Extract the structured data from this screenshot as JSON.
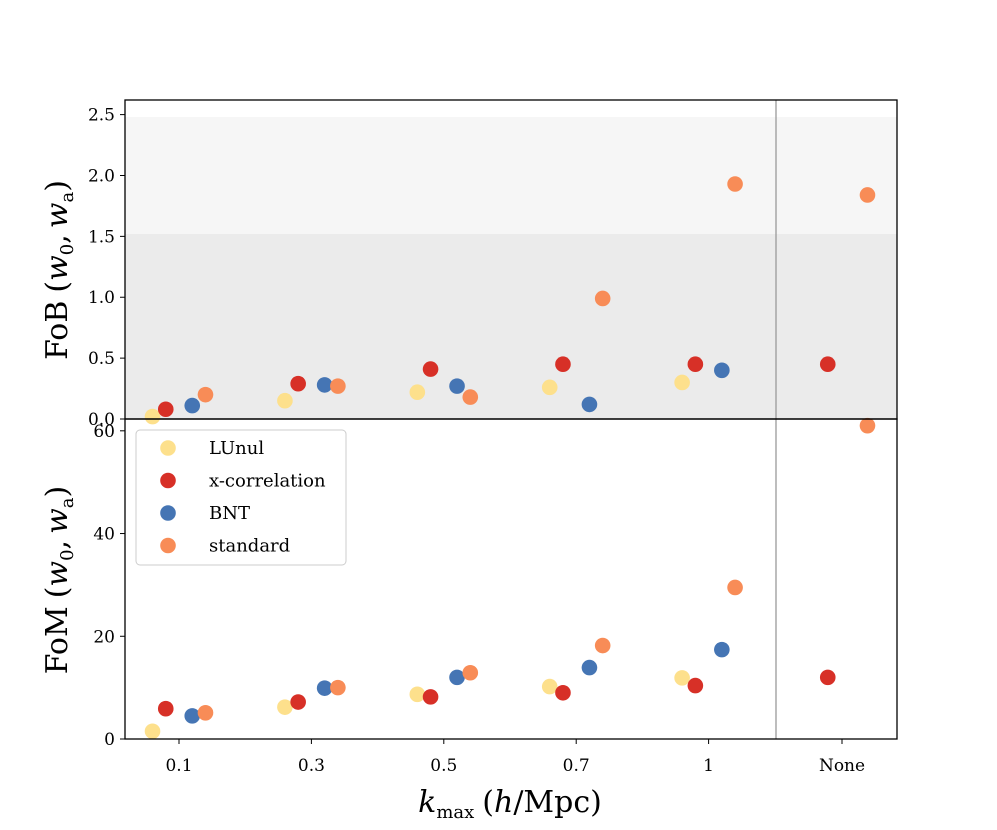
{
  "chart_data": [
    {
      "type": "scatter",
      "panel": "top",
      "ylabel": "FoB (w_0, w_a)",
      "ylabel_parts": {
        "main": "FoB",
        "open": "(",
        "w": "w",
        "sub0": "0",
        "sep": ",",
        "w2": "w",
        "suba": "a",
        "close": ")"
      },
      "ylim": [
        0,
        2.62
      ],
      "yticks": [
        0.0,
        0.5,
        1.0,
        1.5,
        2.0,
        2.5
      ],
      "ytick_labels": [
        "0.0",
        "0.5",
        "1.0",
        "1.5",
        "2.0",
        "2.5"
      ],
      "shaded_bands": [
        {
          "from": 0,
          "to": 1.52,
          "color": "#ebebeb"
        },
        {
          "from": 1.52,
          "to": 2.48,
          "color": "#f6f6f6"
        }
      ],
      "categories": [
        "0.1",
        "0.3",
        "0.5",
        "0.7",
        "1",
        "None"
      ],
      "series": [
        {
          "name": "LUnul",
          "color": "#fde08c",
          "offset": -0.2,
          "values": [
            0.02,
            0.15,
            0.22,
            0.26,
            0.3,
            null
          ]
        },
        {
          "name": "x-correlation",
          "color": "#d73027",
          "offset": -0.1,
          "values": [
            0.08,
            0.29,
            0.41,
            0.45,
            0.45,
            0.45
          ]
        },
        {
          "name": "BNT",
          "color": "#4575b4",
          "offset": 0.1,
          "values": [
            0.11,
            0.28,
            0.27,
            0.12,
            0.4,
            null
          ]
        },
        {
          "name": "standard",
          "color": "#f88c57",
          "offset": 0.2,
          "values": [
            0.2,
            0.27,
            0.18,
            0.99,
            1.93,
            1.84
          ]
        }
      ]
    },
    {
      "type": "scatter",
      "panel": "bottom",
      "ylabel": "FoM (w_0, w_a)",
      "ylabel_parts": {
        "main": "FoM",
        "open": "(",
        "w": "w",
        "sub0": "0",
        "sep": ",",
        "w2": "w",
        "suba": "a",
        "close": ")"
      },
      "xlabel": "k_max (h/Mpc)",
      "xlabel_parts": {
        "k": "k",
        "sub": "max",
        "open": "(",
        "h": "h",
        "rest": "/Mpc)"
      },
      "ylim": [
        0,
        62.3
      ],
      "yticks": [
        0,
        20,
        40,
        60
      ],
      "ytick_labels": [
        "0",
        "20",
        "40",
        "60"
      ],
      "categories": [
        "0.1",
        "0.3",
        "0.5",
        "0.7",
        "1",
        "None"
      ],
      "legend_position": "upper-left",
      "series": [
        {
          "name": "LUnul",
          "color": "#fde08c",
          "offset": -0.2,
          "values": [
            1.5,
            6.2,
            8.7,
            10.2,
            11.9,
            null
          ]
        },
        {
          "name": "x-correlation",
          "color": "#d73027",
          "offset": -0.1,
          "values": [
            5.9,
            7.2,
            8.2,
            9.0,
            10.4,
            12.0
          ]
        },
        {
          "name": "BNT",
          "color": "#4575b4",
          "offset": 0.1,
          "values": [
            4.5,
            9.9,
            12.0,
            13.9,
            17.4,
            null
          ]
        },
        {
          "name": "standard",
          "color": "#f88c57",
          "offset": 0.2,
          "values": [
            5.1,
            10.0,
            12.9,
            18.2,
            29.5,
            61.0
          ]
        }
      ]
    }
  ]
}
